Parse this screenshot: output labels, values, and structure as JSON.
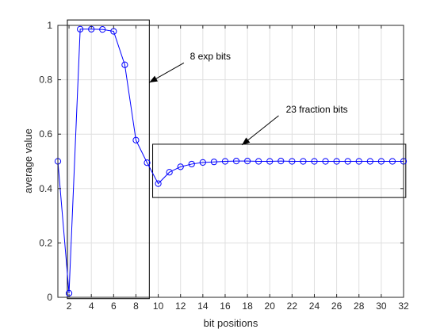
{
  "chart_data": {
    "type": "line",
    "title": "",
    "xlabel": "bit positions",
    "ylabel": "average value",
    "xlim": [
      1,
      32
    ],
    "ylim": [
      0,
      1
    ],
    "grid": true,
    "x_ticks": [
      2,
      4,
      6,
      8,
      10,
      12,
      14,
      16,
      18,
      20,
      22,
      24,
      26,
      28,
      30,
      32
    ],
    "y_ticks": [
      0,
      0.2,
      0.4,
      0.6,
      0.8,
      1
    ],
    "y_tick_labels": [
      "0",
      "0.2",
      "0.4",
      "0.6",
      "0.8",
      "1"
    ],
    "series": [
      {
        "color": "#0000ff",
        "marker": "circle",
        "x": [
          1,
          2,
          3,
          4,
          5,
          6,
          7,
          8,
          9,
          10,
          11,
          12,
          13,
          14,
          15,
          16,
          17,
          18,
          19,
          20,
          21,
          22,
          23,
          24,
          25,
          26,
          27,
          28,
          29,
          30,
          31,
          32
        ],
        "y": [
          0.5,
          0.015,
          0.986,
          0.986,
          0.985,
          0.978,
          0.855,
          0.578,
          0.495,
          0.418,
          0.46,
          0.48,
          0.49,
          0.496,
          0.498,
          0.5,
          0.501,
          0.501,
          0.5,
          0.5,
          0.501,
          0.5,
          0.5,
          0.5,
          0.5,
          0.5,
          0.5,
          0.5,
          0.5,
          0.5,
          0.5,
          0.5
        ]
      }
    ],
    "boxes": [
      {
        "x": [
          1.85,
          9.2
        ],
        "y": [
          -0.005,
          1.02
        ]
      },
      {
        "x": [
          9.5,
          32.2
        ],
        "y": [
          0.367,
          0.563
        ]
      }
    ],
    "annotations": [
      {
        "text": "8 exp bits",
        "text_at": [
          12.85,
          0.875
        ],
        "arrow_from": [
          12.3,
          0.862
        ],
        "arrow_to": [
          9.2,
          0.79
        ]
      },
      {
        "text": "23 fraction bits",
        "text_at": [
          21.45,
          0.68
        ],
        "arrow_from": [
          20.8,
          0.668
        ],
        "arrow_to": [
          17.5,
          0.56
        ]
      }
    ]
  }
}
